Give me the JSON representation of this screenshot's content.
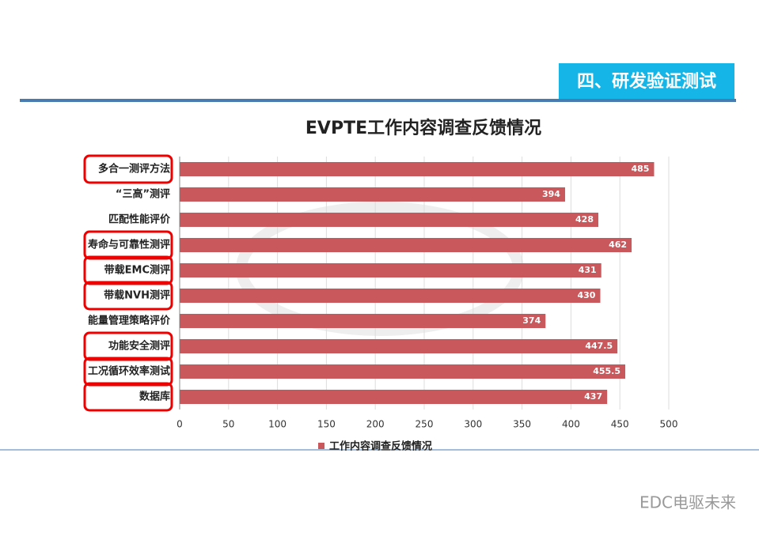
{
  "header": {
    "title": "四、研发验证测试"
  },
  "footer": {
    "text": "EDC电驱未来"
  },
  "chart_data": {
    "type": "hbar",
    "title": "EVPTE工作内容调查反馈情况",
    "categories": [
      "多合一测评方法",
      "“三高”测评",
      "匹配性能评价",
      "寿命与可靠性测评",
      "带载EMC测评",
      "带载NVH测评",
      "能量管理策略评价",
      "功能安全测评",
      "工况循环效率测试",
      "数据库"
    ],
    "series": [
      {
        "name": "工作内容调查反馈情况",
        "color": "#c9585d",
        "values": [
          485,
          394,
          428,
          462,
          431,
          430,
          374,
          447.5,
          455.5,
          437
        ]
      }
    ],
    "xlim": [
      0,
      500
    ],
    "xticks": [
      0,
      50,
      100,
      150,
      200,
      250,
      300,
      350,
      400,
      450,
      500
    ],
    "grid": true,
    "legend": "bottom"
  }
}
